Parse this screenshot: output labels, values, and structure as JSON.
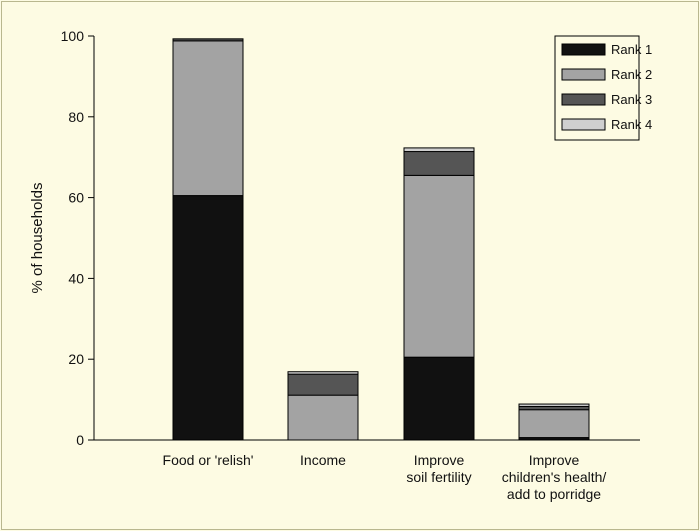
{
  "chart_data": {
    "type": "bar",
    "stacked": true,
    "title": "",
    "xlabel": "",
    "ylabel": "% of households",
    "ylim": [
      0,
      100
    ],
    "yticks": [
      0,
      20,
      40,
      60,
      80,
      100
    ],
    "grid": false,
    "legend_position": "top-right",
    "categories": [
      [
        "Food or 'relish'"
      ],
      [
        "Income"
      ],
      [
        "Improve",
        "soil fertility"
      ],
      [
        "Improve",
        "children's health/",
        "add to porridge"
      ]
    ],
    "series": [
      {
        "name": "Rank 1",
        "color": "#111111",
        "values": [
          60.5,
          0,
          20.5,
          0.6
        ]
      },
      {
        "name": "Rank 2",
        "color": "#a3a3a3",
        "values": [
          38.3,
          11.1,
          45.0,
          6.9
        ]
      },
      {
        "name": "Rank 3",
        "color": "#555555",
        "values": [
          0.5,
          5.2,
          5.9,
          0.8
        ]
      },
      {
        "name": "Rank 4",
        "color": "#cfcfcf",
        "values": [
          0,
          0.6,
          0.9,
          0.6
        ]
      }
    ]
  }
}
